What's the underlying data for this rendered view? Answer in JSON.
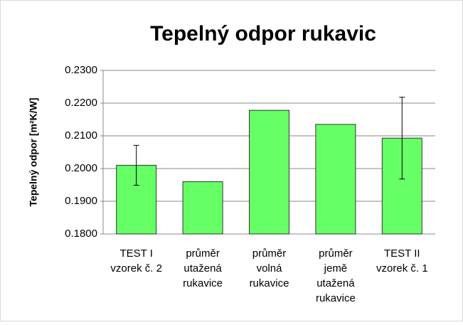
{
  "chart_data": {
    "type": "bar",
    "title": "Tepelný odpor rukavic",
    "y_label": "Tepelný odpor [m²K/W]",
    "categories": [
      [
        "TEST I",
        "vzorek č. 2"
      ],
      [
        "průměr",
        "utažená",
        "rukavice"
      ],
      [
        "průměr",
        "volná",
        "rukavice"
      ],
      [
        "průměr",
        "jemě",
        "utažená",
        "rukavice"
      ],
      [
        "TEST II",
        "vzorek č. 1"
      ]
    ],
    "values": [
      0.201,
      0.196,
      0.2178,
      0.2135,
      0.2093
    ],
    "errors": [
      0.0061,
      null,
      null,
      null,
      0.0125
    ],
    "color": "#66ff66",
    "ylim": [
      0.18,
      0.23
    ],
    "yticks": [
      {
        "value": 0.18,
        "label": "0.1800"
      },
      {
        "value": 0.19,
        "label": "0.1900"
      },
      {
        "value": 0.2,
        "label": "0.2000"
      },
      {
        "value": 0.21,
        "label": "0.2100"
      },
      {
        "value": 0.22,
        "label": "0.2200"
      },
      {
        "value": 0.23,
        "label": "0.2300"
      }
    ],
    "grid": true
  }
}
